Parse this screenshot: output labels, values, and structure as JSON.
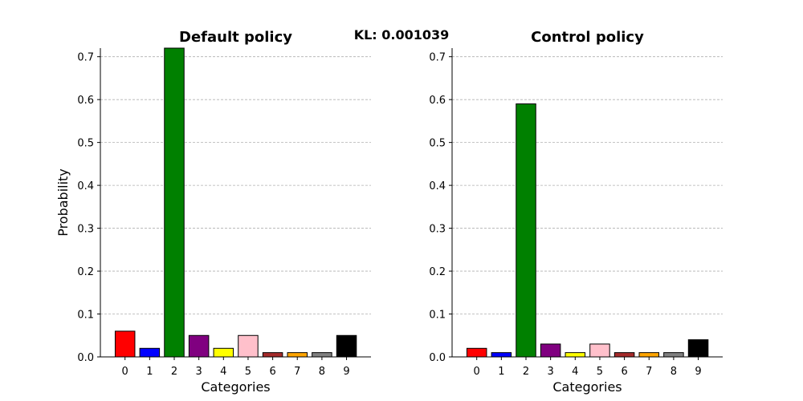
{
  "figure": {
    "kl_text": "KL: 0.001039"
  },
  "chart_data": [
    {
      "type": "bar",
      "title": "Default policy",
      "xlabel": "Categories",
      "ylabel": "Probability",
      "categories": [
        "0",
        "1",
        "2",
        "3",
        "4",
        "5",
        "6",
        "7",
        "8",
        "9"
      ],
      "values": [
        0.06,
        0.02,
        0.72,
        0.05,
        0.02,
        0.05,
        0.01,
        0.01,
        0.01,
        0.05
      ],
      "colors": [
        "#ff0000",
        "#0000ff",
        "#008000",
        "#800080",
        "#ffff00",
        "#ffc0cb",
        "#a52a2a",
        "#ffa500",
        "#808080",
        "#000000"
      ],
      "ylim": [
        0,
        0.72
      ],
      "yticks": [
        "0.0",
        "0.1",
        "0.2",
        "0.3",
        "0.4",
        "0.5",
        "0.6",
        "0.7"
      ],
      "grid": "y-dashed",
      "legend": "none"
    },
    {
      "type": "bar",
      "title": "Control policy",
      "xlabel": "Categories",
      "ylabel": "",
      "categories": [
        "0",
        "1",
        "2",
        "3",
        "4",
        "5",
        "6",
        "7",
        "8",
        "9"
      ],
      "values": [
        0.02,
        0.01,
        0.59,
        0.03,
        0.01,
        0.03,
        0.01,
        0.01,
        0.01,
        0.04
      ],
      "colors": [
        "#ff0000",
        "#0000ff",
        "#008000",
        "#800080",
        "#ffff00",
        "#ffc0cb",
        "#a52a2a",
        "#ffa500",
        "#808080",
        "#000000"
      ],
      "ylim": [
        0,
        0.72
      ],
      "yticks": [
        "0.0",
        "0.1",
        "0.2",
        "0.3",
        "0.4",
        "0.5",
        "0.6",
        "0.7"
      ],
      "grid": "y-dashed",
      "legend": "none"
    }
  ]
}
